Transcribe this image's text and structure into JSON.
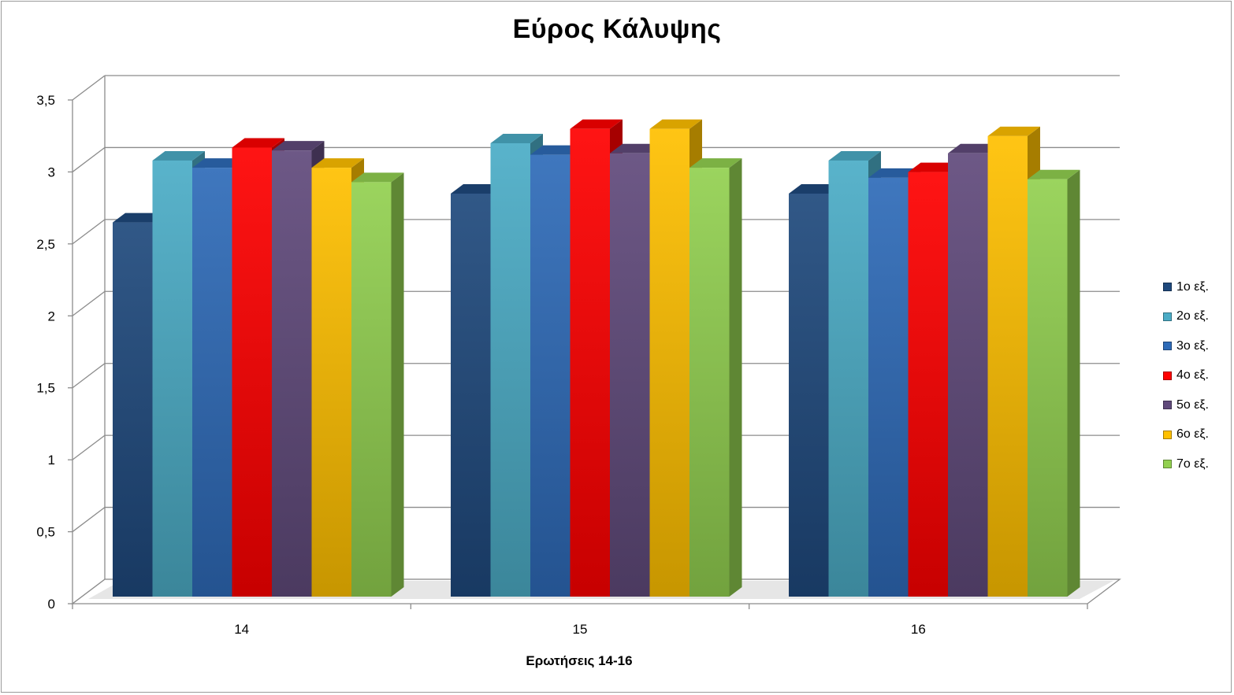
{
  "title": "Εύρος Κάλυψης",
  "xlabel": "Ερωτήσεις 14-16",
  "chart_data": {
    "type": "bar",
    "title": "Εύρος Κάλυψης",
    "xlabel": "Ερωτήσεις 14-16",
    "ylabel": "",
    "categories": [
      "14",
      "15",
      "16"
    ],
    "ylim": [
      0,
      3.5
    ],
    "yticks": [
      "0",
      "0,5",
      "1",
      "1,5",
      "2",
      "2,5",
      "3",
      "3,5"
    ],
    "grid": true,
    "legend_position": "right",
    "series": [
      {
        "name": "1ο εξ.",
        "color": "#1f497d",
        "values": [
          2.6,
          2.8,
          2.8
        ]
      },
      {
        "name": "2ο εξ.",
        "color": "#4bacc6",
        "values": [
          3.03,
          3.15,
          3.03
        ]
      },
      {
        "name": "3ο εξ.",
        "color": "#2e6bb8",
        "values": [
          2.98,
          3.07,
          2.91
        ]
      },
      {
        "name": "4ο εξ.",
        "color": "#ff0000",
        "values": [
          3.12,
          3.25,
          2.95
        ]
      },
      {
        "name": "5ο εξ.",
        "color": "#604a7b",
        "values": [
          3.1,
          3.08,
          3.08
        ]
      },
      {
        "name": "6ο εξ.",
        "color": "#ffc000",
        "values": [
          2.98,
          3.25,
          3.2
        ]
      },
      {
        "name": "7ο εξ.",
        "color": "#92d050",
        "values": [
          2.88,
          2.98,
          2.9
        ]
      }
    ]
  }
}
